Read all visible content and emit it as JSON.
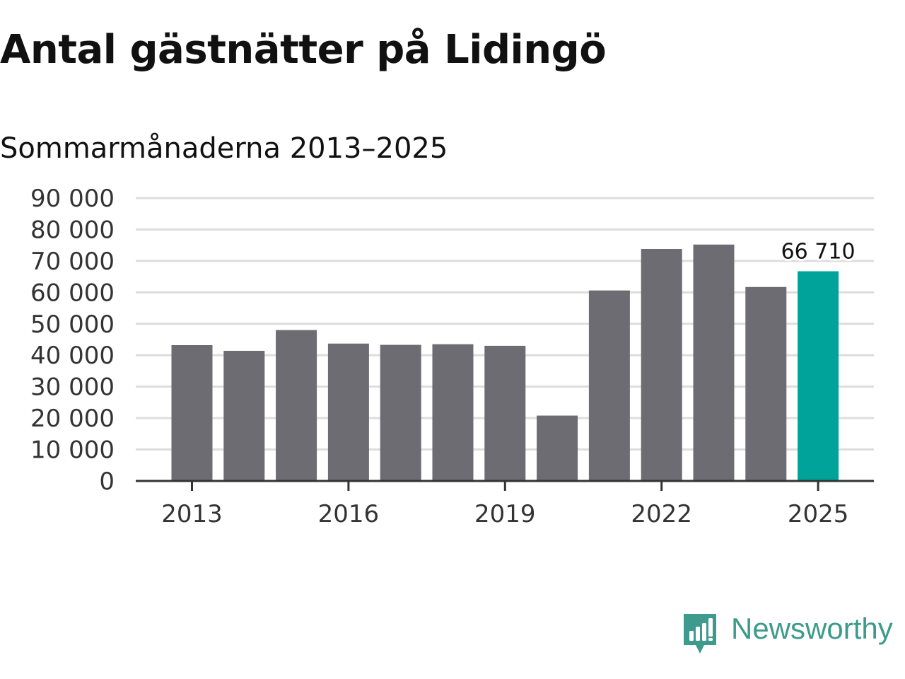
{
  "title": "Antal gästnätter på Lidingö",
  "subtitle": "Sommarmånaderna 2013–2025",
  "brand": {
    "name": "Newsworthy",
    "icon": "newsworthy-logo-icon"
  },
  "colors": {
    "bar": "#6d6c72",
    "highlight": "#00a39a",
    "grid": "#dddddd",
    "axis": "#333333",
    "brand": "#3d9a8c"
  },
  "chart_data": {
    "type": "bar",
    "title": "Antal gästnätter på Lidingö",
    "subtitle": "Sommarmånaderna 2013–2025",
    "categories": [
      "2013",
      "2014",
      "2015",
      "2016",
      "2017",
      "2018",
      "2019",
      "2020",
      "2021",
      "2022",
      "2023",
      "2024",
      "2025"
    ],
    "values": [
      43200,
      41400,
      48000,
      43700,
      43300,
      43500,
      43000,
      20800,
      60600,
      73800,
      75200,
      61700,
      66710
    ],
    "highlight_index": 12,
    "data_labels": [
      {
        "index": 12,
        "text": "66 710"
      }
    ],
    "ylim": [
      0,
      90000
    ],
    "y_ticks": [
      0,
      10000,
      20000,
      30000,
      40000,
      50000,
      60000,
      70000,
      80000,
      90000
    ],
    "y_tick_labels": [
      "0",
      "10 000",
      "20 000",
      "30 000",
      "40 000",
      "50 000",
      "60 000",
      "70 000",
      "80 000",
      "90 000"
    ],
    "x_tick_labels": [
      "2013",
      "2016",
      "2019",
      "2022",
      "2025"
    ],
    "x_tick_categories": [
      "2013",
      "2016",
      "2019",
      "2022",
      "2025"
    ],
    "xlabel": "",
    "ylabel": "",
    "grid": true,
    "legend": "none"
  }
}
